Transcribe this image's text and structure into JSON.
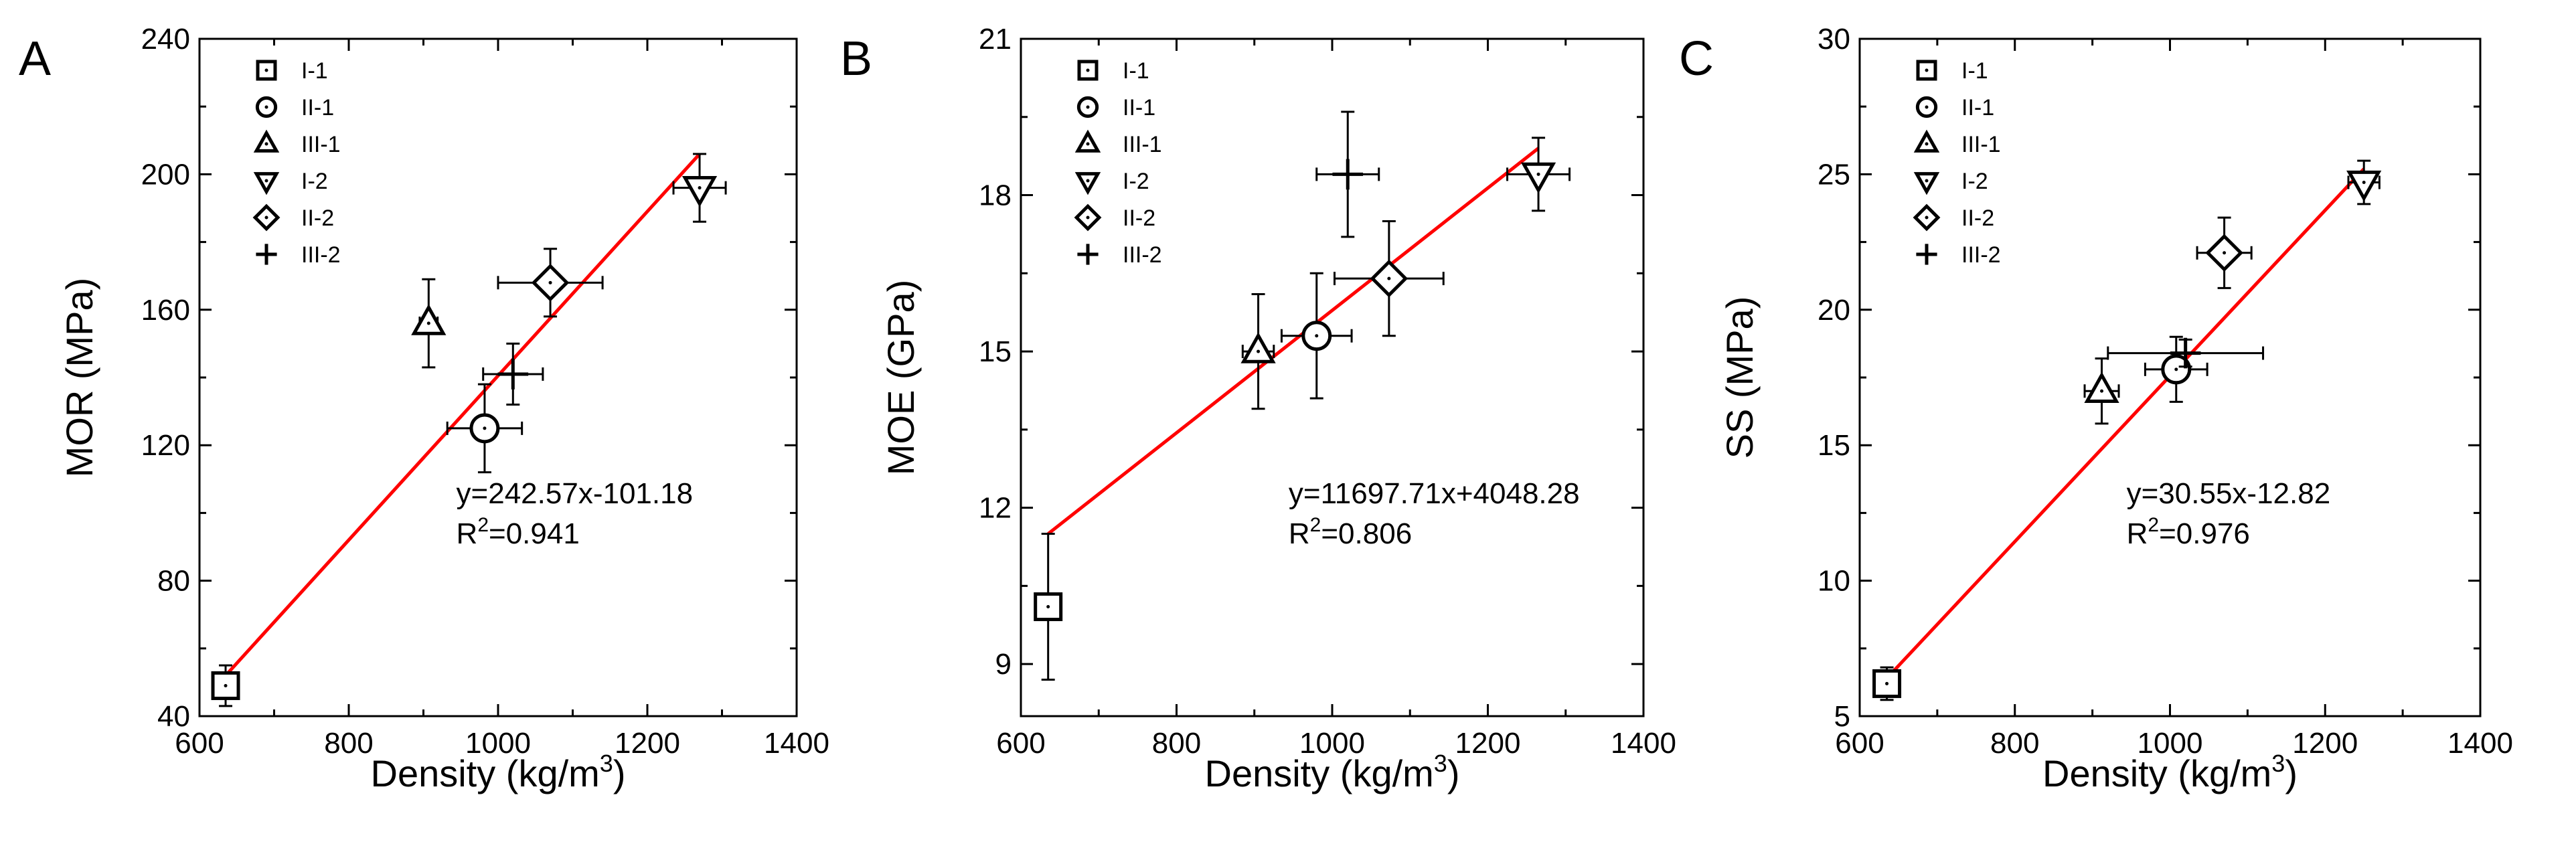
{
  "chart_data": [
    {
      "type": "scatter",
      "panel_label": "A",
      "xlabel": "Density (kg/m",
      "xlabel_sup": "3",
      "xlabel_end": ")",
      "ylabel": "MOR (MPa)",
      "xlim": [
        600,
        1400
      ],
      "ylim": [
        40,
        240
      ],
      "xticks": [
        600,
        800,
        1000,
        1200,
        1400
      ],
      "yticks": [
        40,
        80,
        120,
        160,
        200,
        240
      ],
      "xtick_labels": [
        "600",
        "800",
        "1000",
        "1200",
        "1400"
      ],
      "ytick_labels": [
        "40",
        "80",
        "120",
        "160",
        "200",
        "240"
      ],
      "series": [
        {
          "name": "I-1",
          "marker": "square",
          "x": 635,
          "y": 49,
          "xerr": 15,
          "yerr": 6
        },
        {
          "name": "II-1",
          "marker": "circle",
          "x": 982,
          "y": 125,
          "xerr": 50,
          "yerr": 13
        },
        {
          "name": "III-1",
          "marker": "triangle-up",
          "x": 907,
          "y": 156,
          "xerr": 12,
          "yerr": 13
        },
        {
          "name": "I-2",
          "marker": "triangle-down",
          "x": 1270,
          "y": 196,
          "xerr": 35,
          "yerr": 10
        },
        {
          "name": "II-2",
          "marker": "diamond",
          "x": 1070,
          "y": 168,
          "xerr": 70,
          "yerr": 10
        },
        {
          "name": "III-2",
          "marker": "plus",
          "x": 1020,
          "y": 141,
          "xerr": 40,
          "yerr": 9
        }
      ],
      "fit": {
        "x1": 635,
        "y1": 52,
        "x2": 1270,
        "y2": 206,
        "color": "#ff0000"
      },
      "equation": "y=242.57x-101.18",
      "r2_prefix": "R",
      "r2_sup": "2",
      "r2_value": "=0.941"
    },
    {
      "type": "scatter",
      "panel_label": "B",
      "xlabel": "Density (kg/m",
      "xlabel_sup": "3",
      "xlabel_end": ")",
      "ylabel": "MOE (GPa)",
      "xlim": [
        600,
        1400
      ],
      "ylim": [
        8,
        21
      ],
      "xticks": [
        600,
        800,
        1000,
        1200,
        1400
      ],
      "yticks": [
        9,
        12,
        15,
        18,
        21
      ],
      "xtick_labels": [
        "600",
        "800",
        "1000",
        "1200",
        "1400"
      ],
      "ytick_labels": [
        "9",
        "12",
        "15",
        "18",
        "21"
      ],
      "series": [
        {
          "name": "I-1",
          "marker": "square",
          "x": 635,
          "y": 10.1,
          "xerr": 0,
          "yerr": 1.4
        },
        {
          "name": "II-1",
          "marker": "circle",
          "x": 980,
          "y": 15.3,
          "xerr": 45,
          "yerr": 1.2
        },
        {
          "name": "III-1",
          "marker": "triangle-up",
          "x": 905,
          "y": 15.0,
          "xerr": 20,
          "yerr": 1.1
        },
        {
          "name": "I-2",
          "marker": "triangle-down",
          "x": 1265,
          "y": 18.4,
          "xerr": 40,
          "yerr": 0.7
        },
        {
          "name": "II-2",
          "marker": "diamond",
          "x": 1073,
          "y": 16.4,
          "xerr": 70,
          "yerr": 1.1
        },
        {
          "name": "III-2",
          "marker": "plus",
          "x": 1020,
          "y": 18.4,
          "xerr": 40,
          "yerr": 1.2
        }
      ],
      "fit": {
        "x1": 635,
        "y1": 11.5,
        "x2": 1265,
        "y2": 18.9,
        "color": "#ff0000"
      },
      "equation": "y=11697.71x+4048.28",
      "r2_prefix": "R",
      "r2_sup": "2",
      "r2_value": "=0.806"
    },
    {
      "type": "scatter",
      "panel_label": "C",
      "xlabel": "Density (kg/m",
      "xlabel_sup": "3",
      "xlabel_end": ")",
      "ylabel": "SS (MPa)",
      "xlim": [
        600,
        1400
      ],
      "ylim": [
        5,
        30
      ],
      "xticks": [
        600,
        800,
        1000,
        1200,
        1400
      ],
      "yticks": [
        5,
        10,
        15,
        20,
        25,
        30
      ],
      "xtick_labels": [
        "600",
        "800",
        "1000",
        "1200",
        "1400"
      ],
      "ytick_labels": [
        "5",
        "10",
        "15",
        "20",
        "25",
        "30"
      ],
      "series": [
        {
          "name": "I-1",
          "marker": "square",
          "x": 635,
          "y": 6.2,
          "xerr": 15,
          "yerr": 0.6
        },
        {
          "name": "II-1",
          "marker": "circle",
          "x": 1008,
          "y": 17.8,
          "xerr": 40,
          "yerr": 1.2
        },
        {
          "name": "III-1",
          "marker": "triangle-up",
          "x": 912,
          "y": 17.0,
          "xerr": 22,
          "yerr": 1.2
        },
        {
          "name": "I-2",
          "marker": "triangle-down",
          "x": 1250,
          "y": 24.7,
          "xerr": 20,
          "yerr": 0.8
        },
        {
          "name": "II-2",
          "marker": "diamond",
          "x": 1070,
          "y": 22.1,
          "xerr": 35,
          "yerr": 1.3
        },
        {
          "name": "III-2",
          "marker": "plus",
          "x": 1020,
          "y": 18.4,
          "xerr": 100,
          "yerr": 0.5
        }
      ],
      "fit": {
        "x1": 635,
        "y1": 6.4,
        "x2": 1250,
        "y2": 25.2,
        "color": "#ff0000"
      },
      "equation": "y=30.55x-12.82",
      "r2_prefix": "R",
      "r2_sup": "2",
      "r2_value": "=0.976"
    }
  ]
}
